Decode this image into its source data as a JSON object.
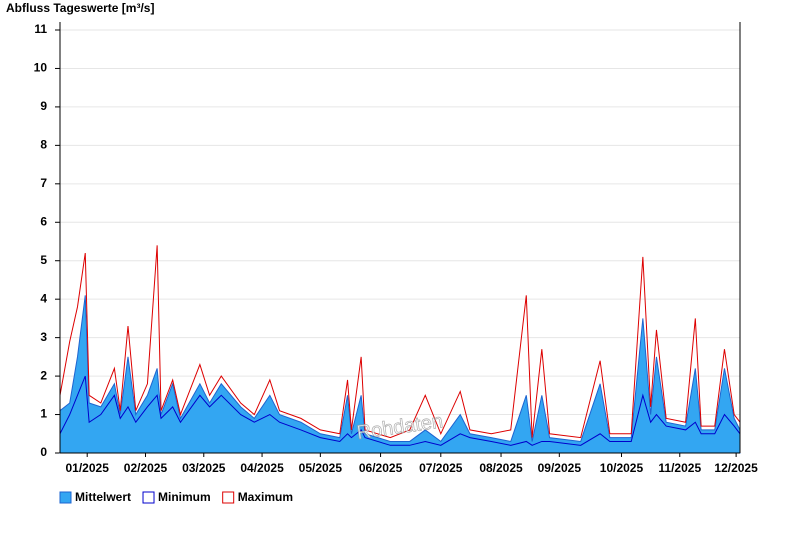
{
  "chart_data": {
    "type": "area",
    "title": "Abfluss Tageswerte [m³/s]",
    "annotation": "Rohdaten",
    "x": [
      0,
      5,
      9,
      13,
      15,
      21,
      28,
      31,
      35,
      39,
      45,
      50,
      52,
      58,
      62,
      72,
      77,
      83,
      93,
      100,
      108,
      113,
      124,
      134,
      144,
      148,
      150,
      155,
      157,
      170,
      180,
      188,
      196,
      206,
      211,
      222,
      232,
      240,
      243,
      248,
      252,
      268,
      278,
      283,
      294,
      300,
      304,
      307,
      312,
      322,
      327,
      330,
      337,
      342,
      347,
      350
    ],
    "series": [
      {
        "name": "Mittelwert",
        "color": "#33a6f2",
        "values": [
          1.1,
          1.3,
          2.5,
          4.1,
          1.3,
          1.2,
          1.8,
          1.0,
          2.5,
          1.0,
          1.5,
          2.2,
          1.0,
          1.8,
          0.9,
          1.8,
          1.3,
          1.8,
          1.2,
          0.9,
          1.5,
          1.0,
          0.8,
          0.5,
          0.4,
          1.5,
          0.5,
          1.5,
          0.5,
          0.3,
          0.3,
          0.6,
          0.3,
          1.0,
          0.5,
          0.4,
          0.3,
          1.5,
          0.3,
          1.5,
          0.4,
          0.3,
          1.8,
          0.4,
          0.4,
          3.5,
          1.0,
          2.5,
          0.8,
          0.7,
          2.2,
          0.6,
          0.6,
          2.2,
          0.9,
          0.6
        ]
      },
      {
        "name": "Minimum",
        "color": "#0000cc",
        "values": [
          0.5,
          1.0,
          1.5,
          2.0,
          0.8,
          1.0,
          1.5,
          0.9,
          1.2,
          0.8,
          1.2,
          1.5,
          0.9,
          1.2,
          0.8,
          1.5,
          1.2,
          1.5,
          1.0,
          0.8,
          1.0,
          0.8,
          0.6,
          0.4,
          0.3,
          0.5,
          0.4,
          0.6,
          0.4,
          0.2,
          0.2,
          0.3,
          0.2,
          0.5,
          0.4,
          0.3,
          0.2,
          0.3,
          0.2,
          0.3,
          0.3,
          0.2,
          0.5,
          0.3,
          0.3,
          1.5,
          0.8,
          1.0,
          0.7,
          0.6,
          0.8,
          0.5,
          0.5,
          1.0,
          0.7,
          0.5
        ]
      },
      {
        "name": "Maximum",
        "color": "#dd0000",
        "values": [
          1.5,
          2.9,
          3.8,
          5.2,
          1.5,
          1.3,
          2.2,
          1.1,
          3.3,
          1.1,
          1.8,
          5.4,
          1.1,
          1.9,
          1.0,
          2.3,
          1.5,
          2.0,
          1.3,
          1.0,
          1.9,
          1.1,
          0.9,
          0.6,
          0.5,
          1.9,
          0.6,
          2.5,
          0.6,
          0.4,
          0.6,
          1.5,
          0.5,
          1.6,
          0.6,
          0.5,
          0.6,
          4.1,
          0.4,
          2.7,
          0.5,
          0.4,
          2.4,
          0.5,
          0.5,
          5.1,
          1.2,
          3.2,
          0.9,
          0.8,
          3.5,
          0.7,
          0.7,
          2.7,
          1.0,
          0.8
        ]
      }
    ],
    "xlim": [
      0,
      350
    ],
    "xticks": [
      {
        "value": 14,
        "label": "01/2025"
      },
      {
        "value": 44,
        "label": "02/2025"
      },
      {
        "value": 74,
        "label": "03/2025"
      },
      {
        "value": 104,
        "label": "04/2025"
      },
      {
        "value": 134,
        "label": "05/2025"
      },
      {
        "value": 165,
        "label": "06/2025"
      },
      {
        "value": 196,
        "label": "07/2025"
      },
      {
        "value": 227,
        "label": "08/2025"
      },
      {
        "value": 257,
        "label": "09/2025"
      },
      {
        "value": 289,
        "label": "10/2025"
      },
      {
        "value": 319,
        "label": "11/2025"
      },
      {
        "value": 348,
        "label": "12/2025"
      }
    ],
    "ylim": [
      0,
      11
    ],
    "yticks": [
      0,
      1,
      2,
      3,
      4,
      5,
      6,
      7,
      8,
      9,
      10,
      11
    ],
    "grid": true,
    "legend": "bottom-left"
  }
}
